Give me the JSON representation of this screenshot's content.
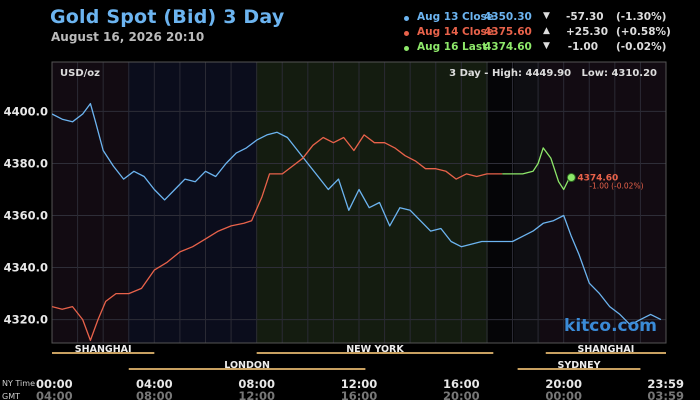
{
  "title": "Gold Spot (Bid) 3 Day",
  "timestamp": "August 16, 2026 20:10",
  "legend": [
    {
      "label": "Aug 13 Close",
      "value": "4350.30",
      "arrow": "▼",
      "change": "-57.30",
      "pct": "(-1.30%)",
      "color": "#6cb4f0"
    },
    {
      "label": "Aug 14 Close",
      "value": "4375.60",
      "arrow": "▲",
      "change": "+25.30",
      "pct": "(+0.58%)",
      "color": "#e8624a"
    },
    {
      "label": "Aug 16 Last",
      "value": "4374.60",
      "arrow": "▼",
      "change": "-1.00",
      "pct": "(-0.02%)",
      "color": "#8ee86a"
    }
  ],
  "unit_label": "USD/oz",
  "range_text": "3 Day - High: 4449.90   Low: 4310.20",
  "last_marker": {
    "price": "4374.60",
    "change": "-1.00 (-0.02%)"
  },
  "watermark": "kitco.com",
  "time_rows": {
    "ny": "NY Time",
    "gmt": "GMT"
  },
  "colors": {
    "blue": "#6cb4f0",
    "red": "#e8624a",
    "green": "#8ee86a",
    "session": "#c8a060"
  },
  "chart_data": {
    "type": "line",
    "title": "Gold Spot (Bid) 3 Day",
    "ylabel": "USD/oz",
    "xlim": [
      0,
      24
    ],
    "ylim": [
      4311,
      4419
    ],
    "y_ticks": [
      4320,
      4340,
      4360,
      4380,
      4400
    ],
    "y_tick_labels": [
      "4320.0",
      "4340.0",
      "4360.0",
      "4380.0",
      "4400.0"
    ],
    "x_ticks": [
      0,
      4,
      8,
      12,
      16,
      20,
      24
    ],
    "x_tick_labels": [
      "00:00",
      "04:00",
      "08:00",
      "12:00",
      "16:00",
      "20:00",
      "23:59"
    ],
    "gmt_tick_labels": [
      "04:00",
      "08:00",
      "12:00",
      "16:00",
      "20:00",
      "00:00",
      "03:59"
    ],
    "sessions": [
      {
        "name": "SHANGHAI",
        "row": 1,
        "start": 0,
        "end": 4
      },
      {
        "name": "NEW YORK",
        "row": 1,
        "start": 8,
        "end": 17.25
      },
      {
        "name": "SHANGHAI",
        "row": 1,
        "start": 19.3,
        "end": 24
      },
      {
        "name": "LONDON",
        "row": 2,
        "start": 3,
        "end": 12.25
      },
      {
        "name": "SYDNEY",
        "row": 2,
        "start": 18.2,
        "end": 23
      }
    ],
    "series": [
      {
        "color": "#6cb4f0",
        "x": [
          0,
          0.4,
          0.8,
          1.2,
          1.5,
          1.7,
          2,
          2.4,
          2.8,
          3.2,
          3.6,
          4,
          4.4,
          4.8,
          5.2,
          5.6,
          6,
          6.4,
          6.8,
          7.2,
          7.6,
          8,
          8.4,
          8.8,
          9.2,
          9.6,
          10,
          10.4,
          10.8,
          11.2,
          11.6,
          12,
          12.4,
          12.8,
          13.2,
          13.6,
          14,
          14.4,
          14.8,
          15.2,
          15.6,
          16,
          16.4,
          16.8,
          17.2,
          17.6,
          18,
          18.4,
          18.8,
          19.2,
          19.6,
          20,
          20.3,
          20.6,
          21,
          21.4,
          21.8,
          22.2,
          22.6,
          23,
          23.4,
          23.8
        ],
        "y": [
          4399,
          4397,
          4396,
          4399,
          4403,
          4396,
          4385,
          4379,
          4374,
          4377,
          4375,
          4370,
          4366,
          4370,
          4374,
          4373,
          4377,
          4375,
          4380,
          4384,
          4386,
          4389,
          4391,
          4392,
          4390,
          4385,
          4380,
          4375,
          4370,
          4374,
          4362,
          4370,
          4363,
          4365,
          4356,
          4363,
          4362,
          4358,
          4354,
          4355,
          4350,
          4348,
          4349,
          4350,
          4350,
          4350,
          4350,
          4352,
          4354,
          4357,
          4358,
          4360,
          4352,
          4345,
          4334,
          4330,
          4325,
          4322,
          4318,
          4320,
          4322,
          4320
        ]
      },
      {
        "color": "#e8624a",
        "x": [
          0,
          0.4,
          0.8,
          1.2,
          1.5,
          1.8,
          2.1,
          2.5,
          3,
          3.5,
          4,
          4.5,
          5,
          5.5,
          6,
          6.5,
          7,
          7.5,
          7.8,
          8.2,
          8.5,
          9,
          9.4,
          9.8,
          10.2,
          10.6,
          11,
          11.4,
          11.8,
          12.2,
          12.6,
          13,
          13.4,
          13.8,
          14.2,
          14.6,
          15,
          15.4,
          15.8,
          16.2,
          16.6,
          17,
          17.4,
          17.6
        ],
        "y": [
          4325,
          4324,
          4325,
          4320,
          4312,
          4320,
          4327,
          4330,
          4330,
          4332,
          4339,
          4342,
          4346,
          4348,
          4351,
          4354,
          4356,
          4357,
          4358,
          4367,
          4376,
          4376,
          4379,
          4382,
          4387,
          4390,
          4388,
          4390,
          4385,
          4391,
          4388,
          4388,
          4386,
          4383,
          4381,
          4378,
          4378,
          4377,
          4374,
          4376,
          4375,
          4376,
          4376,
          4376
        ]
      },
      {
        "color": "#8ee86a",
        "x": [
          17.6,
          18,
          18.4,
          18.8,
          19,
          19.2,
          19.5,
          19.8,
          20,
          20.2,
          20.3
        ],
        "y": [
          4376,
          4376,
          4376,
          4377,
          4380,
          4386,
          4382,
          4373,
          4370,
          4374,
          4374.6
        ]
      }
    ]
  }
}
